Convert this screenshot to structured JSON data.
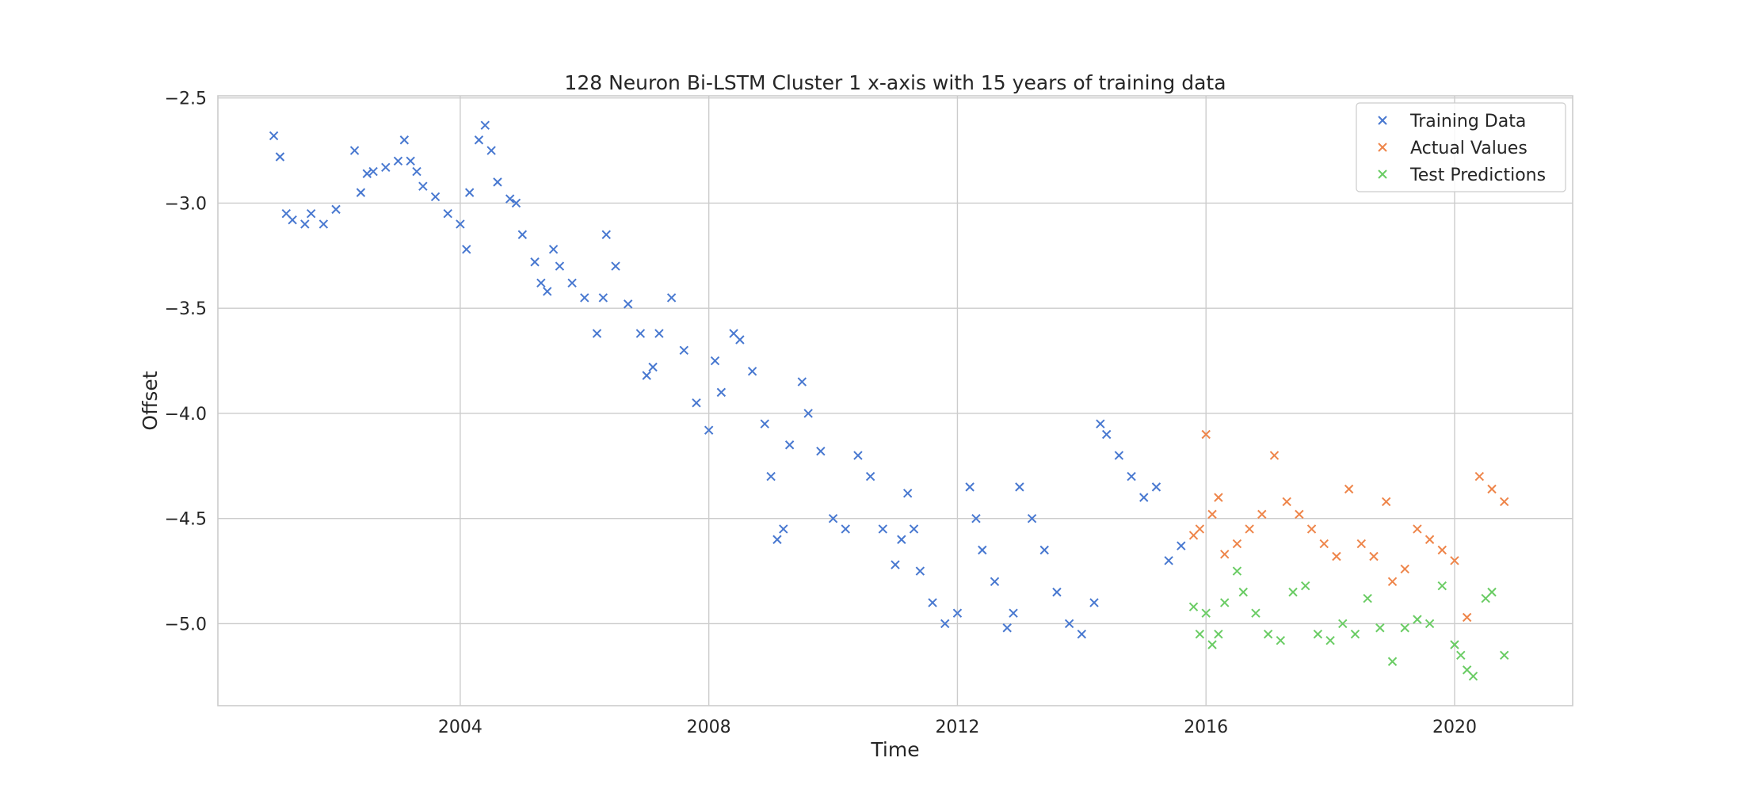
{
  "chart_data": {
    "type": "scatter",
    "title": "128 Neuron Bi-LSTM Cluster 1 x-axis with 15 years of training data",
    "xlabel": "Time",
    "ylabel": "Offset",
    "xlim": [
      2000.1,
      2021.9
    ],
    "ylim": [
      -5.39,
      -2.49
    ],
    "xticks": [
      2004,
      2008,
      2012,
      2016,
      2020
    ],
    "xtick_labels": [
      "2004",
      "2008",
      "2012",
      "2016",
      "2020"
    ],
    "yticks": [
      -2.5,
      -3.0,
      -3.5,
      -4.0,
      -4.5,
      -5.0
    ],
    "ytick_labels": [
      "−2.5",
      "−3.0",
      "−3.5",
      "−4.0",
      "−4.5",
      "−5.0"
    ],
    "grid": true,
    "legend_position": "top-right",
    "marker": "x",
    "series": [
      {
        "name": "Training Data",
        "color": "#4878d0",
        "x": [
          2001.0,
          2001.1,
          2001.2,
          2001.3,
          2001.5,
          2001.6,
          2001.8,
          2002.0,
          2002.3,
          2002.4,
          2002.5,
          2002.6,
          2002.8,
          2003.0,
          2003.1,
          2003.2,
          2003.3,
          2003.4,
          2003.6,
          2003.8,
          2004.0,
          2004.1,
          2004.15,
          2004.3,
          2004.4,
          2004.5,
          2004.6,
          2004.8,
          2004.9,
          2005.0,
          2005.2,
          2005.3,
          2005.4,
          2005.5,
          2005.6,
          2005.8,
          2006.0,
          2006.2,
          2006.3,
          2006.35,
          2006.5,
          2006.7,
          2006.9,
          2007.0,
          2007.1,
          2007.2,
          2007.4,
          2007.6,
          2007.8,
          2008.0,
          2008.1,
          2008.2,
          2008.4,
          2008.5,
          2008.7,
          2008.9,
          2009.0,
          2009.1,
          2009.2,
          2009.3,
          2009.5,
          2009.6,
          2009.8,
          2010.0,
          2010.2,
          2010.4,
          2010.6,
          2010.8,
          2011.0,
          2011.1,
          2011.2,
          2011.3,
          2011.4,
          2011.6,
          2011.8,
          2012.0,
          2012.2,
          2012.3,
          2012.4,
          2012.6,
          2012.8,
          2012.9,
          2013.0,
          2013.2,
          2013.4,
          2013.6,
          2013.8,
          2014.0,
          2014.2,
          2014.3,
          2014.4,
          2014.6,
          2014.8,
          2015.0,
          2015.2,
          2015.4,
          2015.6
        ],
        "y": [
          -2.68,
          -2.78,
          -3.05,
          -3.08,
          -3.1,
          -3.05,
          -3.1,
          -3.03,
          -2.75,
          -2.95,
          -2.86,
          -2.85,
          -2.83,
          -2.8,
          -2.7,
          -2.8,
          -2.85,
          -2.92,
          -2.97,
          -3.05,
          -3.1,
          -3.22,
          -2.95,
          -2.7,
          -2.63,
          -2.75,
          -2.9,
          -2.98,
          -3.0,
          -3.15,
          -3.28,
          -3.38,
          -3.42,
          -3.22,
          -3.3,
          -3.38,
          -3.45,
          -3.62,
          -3.45,
          -3.15,
          -3.3,
          -3.48,
          -3.62,
          -3.82,
          -3.78,
          -3.62,
          -3.45,
          -3.7,
          -3.95,
          -4.08,
          -3.75,
          -3.9,
          -3.62,
          -3.65,
          -3.8,
          -4.05,
          -4.3,
          -4.6,
          -4.55,
          -4.15,
          -3.85,
          -4.0,
          -4.18,
          -4.5,
          -4.55,
          -4.2,
          -4.3,
          -4.55,
          -4.72,
          -4.6,
          -4.38,
          -4.55,
          -4.75,
          -4.9,
          -5.0,
          -4.95,
          -4.35,
          -4.5,
          -4.65,
          -4.8,
          -5.02,
          -4.95,
          -4.35,
          -4.5,
          -4.65,
          -4.85,
          -5.0,
          -5.05,
          -4.9,
          -4.05,
          -4.1,
          -4.2,
          -4.3,
          -4.4,
          -4.35,
          -4.7,
          -4.63
        ]
      },
      {
        "name": "Actual Values",
        "color": "#ee854a",
        "x": [
          2015.8,
          2015.9,
          2016.0,
          2016.1,
          2016.2,
          2016.3,
          2016.5,
          2016.7,
          2016.9,
          2017.1,
          2017.3,
          2017.5,
          2017.7,
          2017.9,
          2018.1,
          2018.3,
          2018.5,
          2018.7,
          2018.9,
          2019.0,
          2019.2,
          2019.4,
          2019.6,
          2019.8,
          2020.0,
          2020.2,
          2020.4,
          2020.6,
          2020.8
        ],
        "y": [
          -4.58,
          -4.55,
          -4.1,
          -4.48,
          -4.4,
          -4.67,
          -4.62,
          -4.55,
          -4.48,
          -4.2,
          -4.42,
          -4.48,
          -4.55,
          -4.62,
          -4.68,
          -4.36,
          -4.62,
          -4.68,
          -4.42,
          -4.8,
          -4.74,
          -4.55,
          -4.6,
          -4.65,
          -4.7,
          -4.97,
          -4.3,
          -4.36,
          -4.42
        ]
      },
      {
        "name": "Test Predictions",
        "color": "#6acc64",
        "x": [
          2015.8,
          2015.9,
          2016.0,
          2016.1,
          2016.2,
          2016.3,
          2016.5,
          2016.6,
          2016.8,
          2017.0,
          2017.2,
          2017.4,
          2017.6,
          2017.8,
          2018.0,
          2018.2,
          2018.4,
          2018.6,
          2018.8,
          2019.0,
          2019.2,
          2019.4,
          2019.6,
          2019.8,
          2020.0,
          2020.1,
          2020.2,
          2020.3,
          2020.5,
          2020.6,
          2020.8
        ],
        "y": [
          -4.92,
          -5.05,
          -4.95,
          -5.1,
          -5.05,
          -4.9,
          -4.75,
          -4.85,
          -4.95,
          -5.05,
          -5.08,
          -4.85,
          -4.82,
          -5.05,
          -5.08,
          -5.0,
          -5.05,
          -4.88,
          -5.02,
          -5.18,
          -5.02,
          -4.98,
          -5.0,
          -4.82,
          -5.1,
          -5.15,
          -5.22,
          -5.25,
          -4.88,
          -4.85,
          -5.15
        ]
      }
    ]
  }
}
